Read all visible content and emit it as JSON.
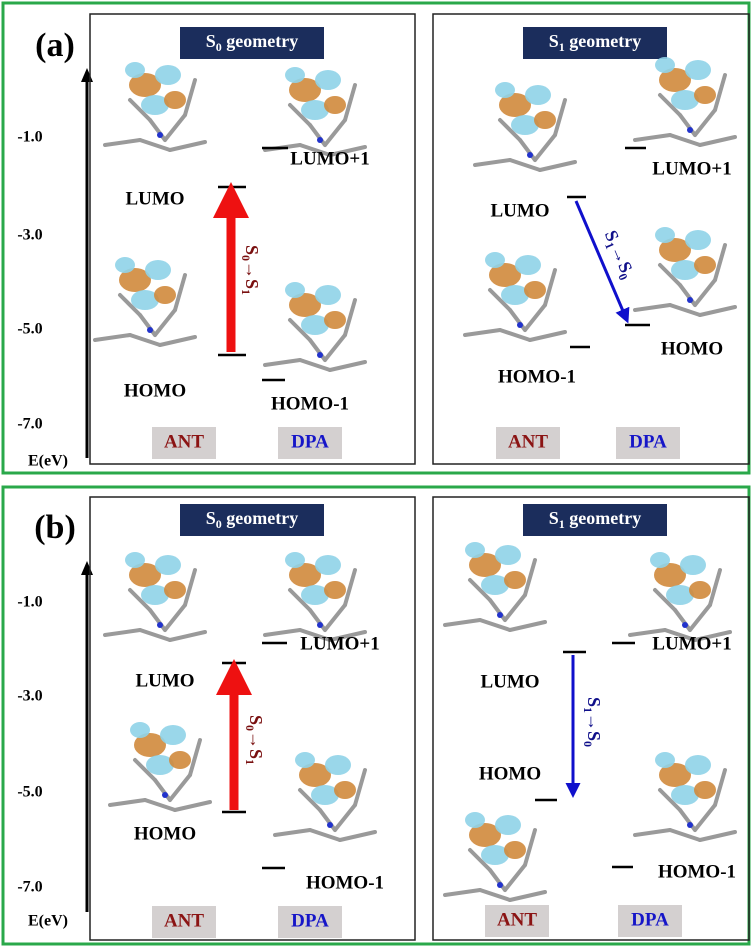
{
  "panels": [
    {
      "label": "(a)",
      "axis": {
        "ticks": [
          "-1.0",
          "-3.0",
          "-5.0",
          "-7.0"
        ],
        "label": "E(eV)"
      },
      "subpanels": [
        {
          "title": {
            "main": "S",
            "sub": "0",
            "rest": " geometry"
          },
          "orbitals": [
            "LUMO",
            "HOMO",
            "LUMO+1",
            "HOMO-1"
          ],
          "transition": {
            "from": "S",
            "from_sub": "0",
            "arrow": "→",
            "to": "S",
            "to_sub": "1"
          },
          "groups": [
            "ANT",
            "DPA"
          ]
        },
        {
          "title": {
            "main": "S",
            "sub": "1",
            "rest": " geometry"
          },
          "orbitals": [
            "LUMO",
            "HOMO-1",
            "LUMO+1",
            "HOMO"
          ],
          "transition": {
            "from": "S",
            "from_sub": "1",
            "arrow": "→",
            "to": "S",
            "to_sub": "0"
          },
          "groups": [
            "ANT",
            "DPA"
          ]
        }
      ]
    },
    {
      "label": "(b)",
      "axis": {
        "ticks": [
          "-1.0",
          "-3.0",
          "-5.0",
          "-7.0"
        ],
        "label": "E(eV)"
      },
      "subpanels": [
        {
          "title": {
            "main": "S",
            "sub": "0",
            "rest": " geometry"
          },
          "orbitals": [
            "LUMO",
            "HOMO",
            "LUMO+1",
            "HOMO-1"
          ],
          "transition": {
            "from": "S",
            "from_sub": "0",
            "arrow": "→",
            "to": "S",
            "to_sub": "1"
          },
          "groups": [
            "ANT",
            "DPA"
          ]
        },
        {
          "title": {
            "main": "S",
            "sub": "1",
            "rest": " geometry"
          },
          "orbitals": [
            "LUMO",
            "HOMO",
            "LUMO+1",
            "HOMO-1"
          ],
          "transition": {
            "from": "S",
            "from_sub": "1",
            "arrow": "→",
            "to": "S",
            "to_sub": "0"
          },
          "groups": [
            "ANT",
            "DPA"
          ]
        }
      ]
    }
  ]
}
